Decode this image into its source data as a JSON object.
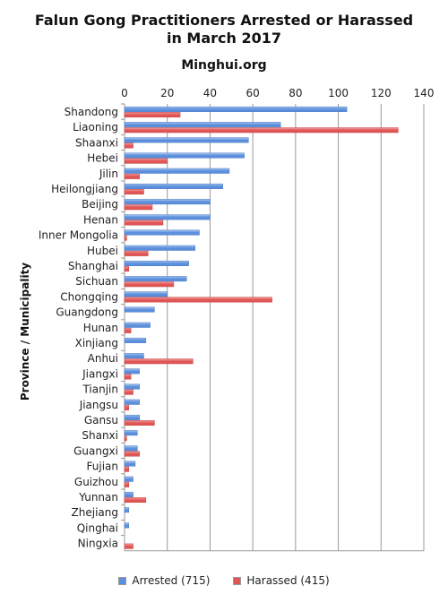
{
  "header": {
    "title_line1": "Falun Gong Practitioners Arrested or Harassed",
    "title_line2": "in March 2017",
    "source": "Minghui.org"
  },
  "legend": {
    "arrested": "Arrested (715)",
    "harassed": "Harassed (415)"
  },
  "colors": {
    "arrested": "#5b8fdc",
    "harassed": "#e05555",
    "grid": "#999999"
  },
  "chart_data": {
    "type": "bar",
    "orientation": "horizontal",
    "title": "Falun Gong Practitioners Arrested or Harassed in March 2017",
    "subtitle": "Minghui.org",
    "xlabel": "",
    "ylabel": "Province / Municipality",
    "xlim": [
      0,
      140
    ],
    "xticks": [
      0,
      20,
      40,
      60,
      80,
      100,
      120,
      140
    ],
    "grid": true,
    "legend_position": "bottom",
    "categories": [
      "Shandong",
      "Liaoning",
      "Shaanxi",
      "Hebei",
      "Jilin",
      "Heilongjiang",
      "Beijing",
      "Henan",
      "Inner Mongolia",
      "Hubei",
      "Shanghai",
      "Sichuan",
      "Chongqing",
      "Guangdong",
      "Hunan",
      "Xinjiang",
      "Anhui",
      "Jiangxi",
      "Tianjin",
      "Jiangsu",
      "Gansu",
      "Shanxi",
      "Guangxi",
      "Fujian",
      "Guizhou",
      "Yunnan",
      "Zhejiang",
      "Qinghai",
      "Ningxia"
    ],
    "series": [
      {
        "name": "Arrested (715)",
        "values": [
          104,
          73,
          58,
          56,
          49,
          46,
          40,
          40,
          35,
          33,
          30,
          29,
          20,
          14,
          12,
          10,
          9,
          7,
          7,
          7,
          7,
          6,
          6,
          5,
          4,
          4,
          2,
          2,
          0
        ]
      },
      {
        "name": "Harassed (415)",
        "values": [
          26,
          128,
          4,
          20,
          7,
          9,
          13,
          18,
          1,
          11,
          2,
          23,
          69,
          0,
          3,
          0,
          32,
          3,
          4,
          2,
          14,
          1,
          7,
          2,
          2,
          10,
          0,
          0,
          4
        ]
      }
    ]
  }
}
